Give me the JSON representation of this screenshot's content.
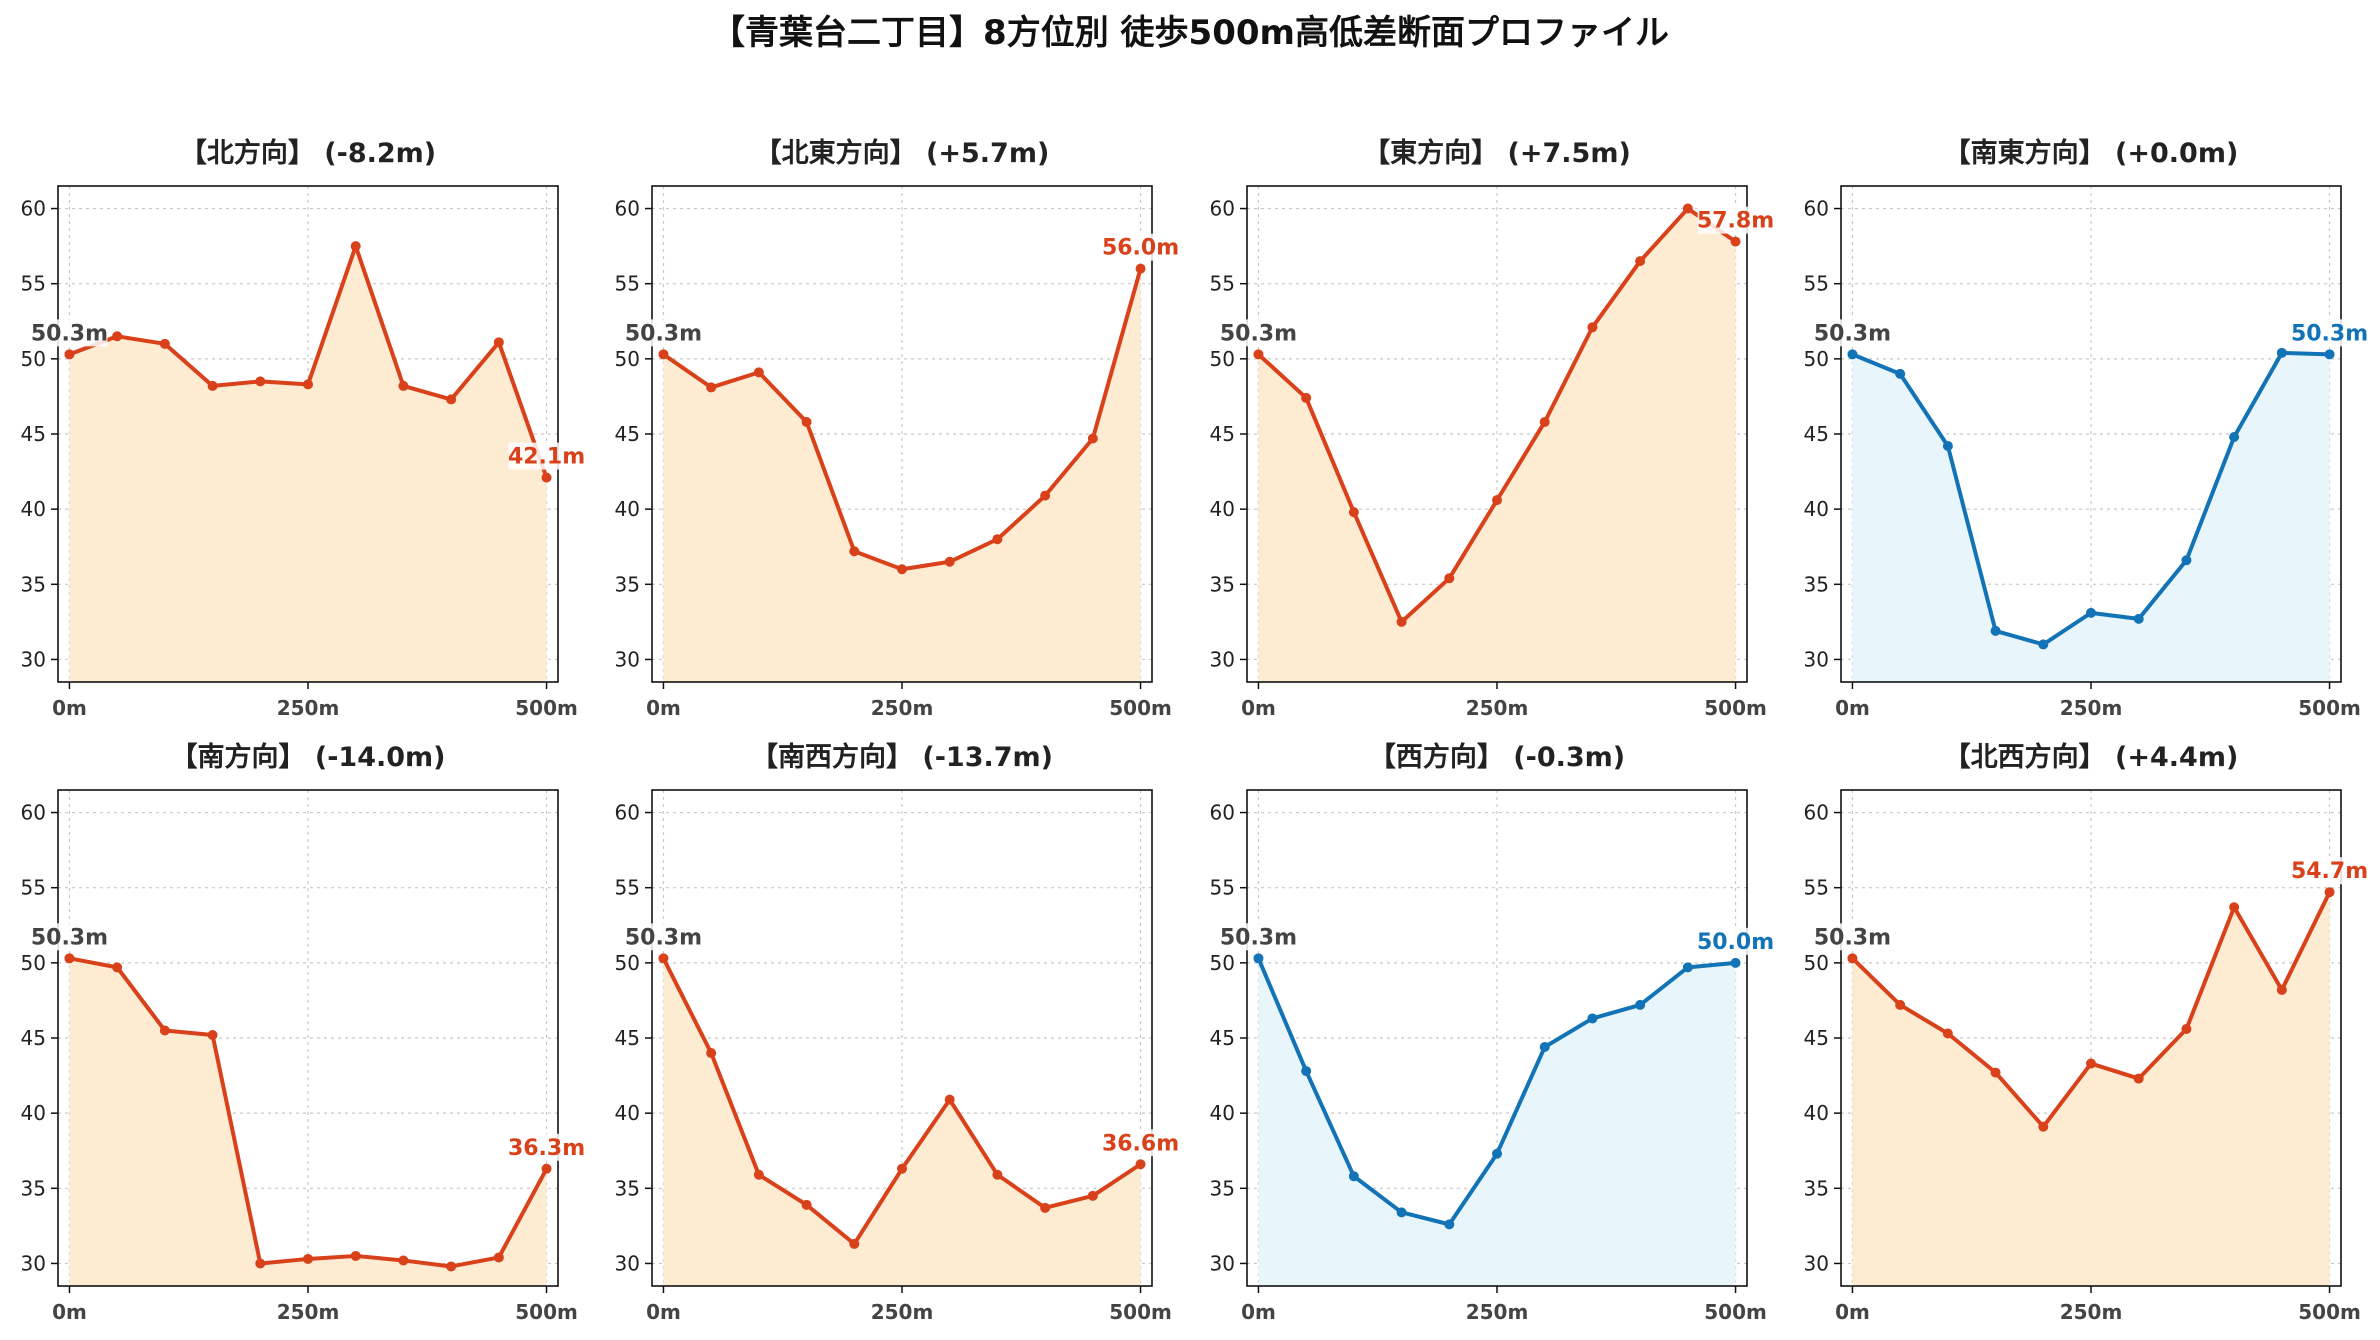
{
  "title": "【青葉台二丁目】8方位別 徒歩500m高低差断面プロファイル",
  "colors": {
    "down": "#d9411a",
    "down_fill": "#fdebd2",
    "flat": "#1273b6",
    "flat_fill": "#e8f5fb",
    "start_label": "#444444"
  },
  "chart_data": [
    {
      "type": "area",
      "title": "【北方向】 (-8.2m)",
      "x": [
        0,
        50,
        100,
        150,
        200,
        250,
        300,
        350,
        400,
        450,
        500
      ],
      "xticks": [
        "0m",
        "250m",
        "500m"
      ],
      "yticks": [
        "30",
        "35",
        "40",
        "45",
        "50",
        "55",
        "60"
      ],
      "ylim": [
        28.5,
        61.5
      ],
      "xlim": [
        -12,
        512
      ],
      "scheme": "down",
      "values": [
        50.3,
        51.5,
        51.0,
        48.2,
        48.5,
        48.3,
        57.5,
        48.2,
        47.3,
        51.1,
        42.1
      ],
      "start_label": "50.3m",
      "end_label": "42.1m"
    },
    {
      "type": "area",
      "title": "【北東方向】 (+5.7m)",
      "x": [
        0,
        50,
        100,
        150,
        200,
        250,
        300,
        350,
        400,
        450,
        500
      ],
      "xticks": [
        "0m",
        "250m",
        "500m"
      ],
      "yticks": [
        "30",
        "35",
        "40",
        "45",
        "50",
        "55",
        "60"
      ],
      "ylim": [
        28.5,
        61.5
      ],
      "xlim": [
        -12,
        512
      ],
      "scheme": "down",
      "values": [
        50.3,
        48.1,
        49.1,
        45.8,
        37.2,
        36.0,
        36.5,
        38.0,
        40.9,
        44.7,
        56.0
      ],
      "start_label": "50.3m",
      "end_label": "56.0m"
    },
    {
      "type": "area",
      "title": "【東方向】 (+7.5m)",
      "x": [
        0,
        50,
        100,
        150,
        200,
        250,
        300,
        350,
        400,
        450,
        500
      ],
      "xticks": [
        "0m",
        "250m",
        "500m"
      ],
      "yticks": [
        "30",
        "35",
        "40",
        "45",
        "50",
        "55",
        "60"
      ],
      "ylim": [
        28.5,
        61.5
      ],
      "xlim": [
        -12,
        512
      ],
      "scheme": "down",
      "values": [
        50.3,
        47.4,
        39.8,
        32.5,
        35.4,
        40.6,
        45.8,
        52.1,
        56.5,
        60.0,
        57.8
      ],
      "start_label": "50.3m",
      "end_label": "57.8m"
    },
    {
      "type": "area",
      "title": "【南東方向】 (+0.0m)",
      "x": [
        0,
        50,
        100,
        150,
        200,
        250,
        300,
        350,
        400,
        450,
        500
      ],
      "xticks": [
        "0m",
        "250m",
        "500m"
      ],
      "yticks": [
        "30",
        "35",
        "40",
        "45",
        "50",
        "55",
        "60"
      ],
      "ylim": [
        28.5,
        61.5
      ],
      "xlim": [
        -12,
        512
      ],
      "scheme": "flat",
      "values": [
        50.3,
        49.0,
        44.2,
        31.9,
        31.0,
        33.1,
        32.7,
        36.6,
        44.8,
        50.4,
        50.3
      ],
      "start_label": "50.3m",
      "end_label": "50.3m"
    },
    {
      "type": "area",
      "title": "【南方向】 (-14.0m)",
      "x": [
        0,
        50,
        100,
        150,
        200,
        250,
        300,
        350,
        400,
        450,
        500
      ],
      "xticks": [
        "0m",
        "250m",
        "500m"
      ],
      "yticks": [
        "30",
        "35",
        "40",
        "45",
        "50",
        "55",
        "60"
      ],
      "ylim": [
        28.5,
        61.5
      ],
      "xlim": [
        -12,
        512
      ],
      "scheme": "down",
      "values": [
        50.3,
        49.7,
        45.5,
        45.2,
        30.0,
        30.3,
        30.5,
        30.2,
        29.8,
        30.4,
        36.3
      ],
      "start_label": "50.3m",
      "end_label": "36.3m"
    },
    {
      "type": "area",
      "title": "【南西方向】 (-13.7m)",
      "x": [
        0,
        50,
        100,
        150,
        200,
        250,
        300,
        350,
        400,
        450,
        500
      ],
      "xticks": [
        "0m",
        "250m",
        "500m"
      ],
      "yticks": [
        "30",
        "35",
        "40",
        "45",
        "50",
        "55",
        "60"
      ],
      "ylim": [
        28.5,
        61.5
      ],
      "xlim": [
        -12,
        512
      ],
      "scheme": "down",
      "values": [
        50.3,
        44.0,
        35.9,
        33.9,
        31.3,
        36.3,
        40.9,
        35.9,
        33.7,
        34.5,
        36.6
      ],
      "start_label": "50.3m",
      "end_label": "36.6m"
    },
    {
      "type": "area",
      "title": "【西方向】 (-0.3m)",
      "x": [
        0,
        50,
        100,
        150,
        200,
        250,
        300,
        350,
        400,
        450,
        500
      ],
      "xticks": [
        "0m",
        "250m",
        "500m"
      ],
      "yticks": [
        "30",
        "35",
        "40",
        "45",
        "50",
        "55",
        "60"
      ],
      "ylim": [
        28.5,
        61.5
      ],
      "xlim": [
        -12,
        512
      ],
      "scheme": "flat",
      "values": [
        50.3,
        42.8,
        35.8,
        33.4,
        32.6,
        37.3,
        44.4,
        46.3,
        47.2,
        49.7,
        50.0
      ],
      "start_label": "50.3m",
      "end_label": "50.0m"
    },
    {
      "type": "area",
      "title": "【北西方向】 (+4.4m)",
      "x": [
        0,
        50,
        100,
        150,
        200,
        250,
        300,
        350,
        400,
        450,
        500
      ],
      "xticks": [
        "0m",
        "250m",
        "500m"
      ],
      "yticks": [
        "30",
        "35",
        "40",
        "45",
        "50",
        "55",
        "60"
      ],
      "ylim": [
        28.5,
        61.5
      ],
      "xlim": [
        -12,
        512
      ],
      "scheme": "down",
      "values": [
        50.3,
        47.2,
        45.3,
        42.7,
        39.1,
        43.3,
        42.3,
        45.6,
        53.7,
        48.2,
        54.7
      ],
      "start_label": "50.3m",
      "end_label": "54.7m"
    }
  ]
}
